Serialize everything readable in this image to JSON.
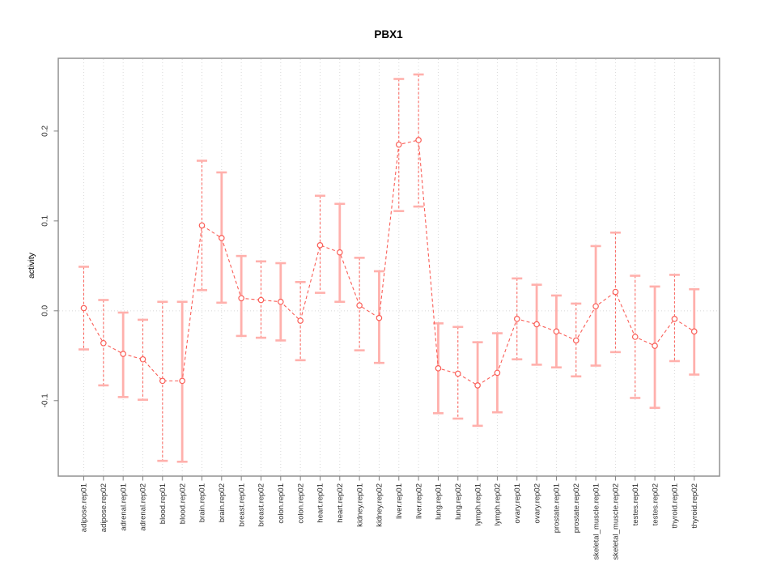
{
  "page": {
    "background": "#ffffff"
  },
  "chart_data": {
    "type": "line",
    "subtype": "point-estimates-with-confidence-error-bars",
    "title": "PBX1",
    "xlabel": "",
    "ylabel": "activity",
    "legend": "none",
    "grid": {
      "vertical_dotted_per_category": true,
      "horizontal_dotted_at_zero": true
    },
    "ylim": [
      -0.184,
      0.281
    ],
    "ytick_values": [
      -0.1,
      0.0,
      0.1,
      0.2
    ],
    "ytick_labels": [
      "-0.1",
      "0.0",
      "0.1",
      "0.2"
    ],
    "categories": [
      "adipose.rep01",
      "adipose.rep02",
      "adrenal.rep01",
      "adrenal.rep02",
      "blood.rep01",
      "blood.rep02",
      "brain.rep01",
      "brain.rep02",
      "breast.rep01",
      "breast.rep02",
      "colon.rep01",
      "colon.rep02",
      "heart.rep01",
      "heart.rep02",
      "kidney.rep01",
      "kidney.rep02",
      "liver.rep01",
      "liver.rep02",
      "lung.rep01",
      "lung.rep02",
      "lymph.rep01",
      "lymph.rep02",
      "ovary.rep01",
      "ovary.rep02",
      "prostate.rep01",
      "prostate.rep02",
      "skeletal_muscle.rep01",
      "skeletal_muscle.rep02",
      "testes.rep01",
      "testes.rep02",
      "thyroid.rep01",
      "thyroid.rep02"
    ],
    "series": [
      {
        "name": "activity",
        "values": [
          0.003,
          -0.036,
          -0.048,
          -0.054,
          -0.078,
          -0.078,
          0.095,
          0.081,
          0.014,
          0.012,
          0.01,
          -0.011,
          0.073,
          0.065,
          0.006,
          -0.008,
          0.185,
          0.19,
          -0.064,
          -0.07,
          -0.083,
          -0.069,
          -0.009,
          -0.015,
          -0.023,
          -0.033,
          0.005,
          0.021,
          -0.029,
          -0.039,
          -0.009,
          -0.023
        ],
        "ci_low": [
          -0.043,
          -0.083,
          -0.096,
          -0.099,
          -0.167,
          -0.168,
          0.023,
          0.009,
          -0.028,
          -0.03,
          -0.033,
          -0.055,
          0.02,
          0.01,
          -0.044,
          -0.058,
          0.111,
          0.116,
          -0.114,
          -0.12,
          -0.128,
          -0.113,
          -0.054,
          -0.06,
          -0.063,
          -0.073,
          -0.061,
          -0.046,
          -0.097,
          -0.108,
          -0.056,
          -0.071
        ],
        "ci_high": [
          0.049,
          0.012,
          -0.002,
          -0.01,
          0.01,
          0.01,
          0.167,
          0.154,
          0.061,
          0.055,
          0.053,
          0.032,
          0.128,
          0.119,
          0.059,
          0.044,
          0.258,
          0.263,
          -0.014,
          -0.018,
          -0.035,
          -0.025,
          0.036,
          0.029,
          0.017,
          0.008,
          0.072,
          0.087,
          0.039,
          0.027,
          0.04,
          0.024
        ]
      }
    ],
    "bar_styles": [
      "dashed",
      "dashed",
      "solid",
      "dashed",
      "dashed",
      "solid",
      "dashed",
      "solid",
      "solid",
      "dashed",
      "solid",
      "dashed",
      "dashed",
      "solid",
      "dashed",
      "solid",
      "dashed",
      "dashed",
      "solid",
      "dashed",
      "solid",
      "solid",
      "dashed",
      "solid",
      "solid",
      "dashed",
      "solid",
      "dashed",
      "dashed",
      "solid",
      "dashed",
      "solid"
    ],
    "colors": {
      "point": "#fa5e57",
      "line": "#fa5e57",
      "error_bar_dashed": "#fa5e57",
      "error_bar_solid": "#ffb0ac",
      "cap": "#ffb0ac",
      "grid": "#d8d8d8",
      "box": "#909090",
      "tick": "#7f7f7f",
      "axis_text": "#2e2e2e"
    }
  }
}
